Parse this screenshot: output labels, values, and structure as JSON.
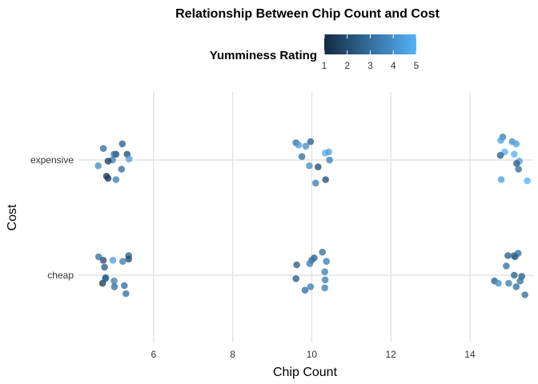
{
  "chart_data": {
    "type": "scatter",
    "title": "Relationship Between Chip Count and Cost",
    "xlabel": "Chip Count",
    "ylabel": "Cost",
    "xlim": [
      4.1,
      15.6
    ],
    "x_ticks": [
      6,
      8,
      10,
      12,
      14
    ],
    "categories": [
      "cheap",
      "expensive"
    ],
    "grid": true,
    "legend": {
      "title": "Yumminess Rating",
      "position": "top",
      "ticks": [
        1,
        2,
        3,
        4,
        5
      ],
      "range": [
        1,
        5
      ],
      "color_low": "#132B43",
      "color_high": "#56B1F7"
    },
    "points": [
      {
        "x": 5.21,
        "cost": "expensive",
        "jitter": 0.14,
        "rating": 2.5
      },
      {
        "x": 4.73,
        "cost": "expensive",
        "jitter": 0.1,
        "rating": 3.0
      },
      {
        "x": 5.05,
        "cost": "expensive",
        "jitter": 0.05,
        "rating": 2.0
      },
      {
        "x": 5.0,
        "cost": "expensive",
        "jitter": 0.05,
        "rating": 3.0
      },
      {
        "x": 5.33,
        "cost": "expensive",
        "jitter": 0.05,
        "rating": 2.0
      },
      {
        "x": 5.38,
        "cost": "expensive",
        "jitter": 0.01,
        "rating": 4.5
      },
      {
        "x": 4.96,
        "cost": "expensive",
        "jitter": 0.0,
        "rating": 3.5
      },
      {
        "x": 4.85,
        "cost": "expensive",
        "jitter": -0.01,
        "rating": 1.5
      },
      {
        "x": 4.6,
        "cost": "expensive",
        "jitter": -0.05,
        "rating": 4.0
      },
      {
        "x": 5.19,
        "cost": "expensive",
        "jitter": -0.08,
        "rating": 3.0
      },
      {
        "x": 4.81,
        "cost": "expensive",
        "jitter": -0.14,
        "rating": 1.5
      },
      {
        "x": 4.85,
        "cost": "expensive",
        "jitter": -0.16,
        "rating": 1.5
      },
      {
        "x": 5.05,
        "cost": "expensive",
        "jitter": -0.17,
        "rating": 3.5
      },
      {
        "x": 9.97,
        "cost": "expensive",
        "jitter": 0.16,
        "rating": 2.5
      },
      {
        "x": 9.6,
        "cost": "expensive",
        "jitter": 0.15,
        "rating": 3.0
      },
      {
        "x": 9.67,
        "cost": "expensive",
        "jitter": 0.13,
        "rating": 4.5
      },
      {
        "x": 9.85,
        "cost": "expensive",
        "jitter": 0.12,
        "rating": 4.0
      },
      {
        "x": 10.34,
        "cost": "expensive",
        "jitter": 0.06,
        "rating": 5.0
      },
      {
        "x": 10.43,
        "cost": "expensive",
        "jitter": 0.07,
        "rating": 4.5
      },
      {
        "x": 9.75,
        "cost": "expensive",
        "jitter": 0.03,
        "rating": 3.0
      },
      {
        "x": 10.45,
        "cost": "expensive",
        "jitter": 0.0,
        "rating": 3.5
      },
      {
        "x": 9.94,
        "cost": "expensive",
        "jitter": -0.05,
        "rating": 4.0
      },
      {
        "x": 10.16,
        "cost": "expensive",
        "jitter": -0.06,
        "rating": 2.0
      },
      {
        "x": 10.35,
        "cost": "expensive",
        "jitter": -0.17,
        "rating": 2.0
      },
      {
        "x": 10.1,
        "cost": "expensive",
        "jitter": -0.2,
        "rating": 3.5
      },
      {
        "x": 14.83,
        "cost": "expensive",
        "jitter": 0.2,
        "rating": 3.5
      },
      {
        "x": 14.78,
        "cost": "expensive",
        "jitter": 0.17,
        "rating": 4.5
      },
      {
        "x": 15.07,
        "cost": "expensive",
        "jitter": 0.16,
        "rating": 4.0
      },
      {
        "x": 15.17,
        "cost": "expensive",
        "jitter": 0.14,
        "rating": 4.5
      },
      {
        "x": 14.88,
        "cost": "expensive",
        "jitter": 0.07,
        "rating": 5.0
      },
      {
        "x": 15.12,
        "cost": "expensive",
        "jitter": 0.05,
        "rating": 5.0
      },
      {
        "x": 14.77,
        "cost": "expensive",
        "jitter": 0.04,
        "rating": 2.5
      },
      {
        "x": 15.25,
        "cost": "expensive",
        "jitter": -0.01,
        "rating": 4.5
      },
      {
        "x": 15.18,
        "cost": "expensive",
        "jitter": -0.03,
        "rating": 2.5
      },
      {
        "x": 15.23,
        "cost": "expensive",
        "jitter": -0.08,
        "rating": 3.0
      },
      {
        "x": 14.79,
        "cost": "expensive",
        "jitter": -0.17,
        "rating": 4.5
      },
      {
        "x": 15.45,
        "cost": "expensive",
        "jitter": -0.18,
        "rating": 5.0
      },
      {
        "x": 5.37,
        "cost": "cheap",
        "jitter": 0.17,
        "rating": 2.5
      },
      {
        "x": 4.61,
        "cost": "cheap",
        "jitter": 0.16,
        "rating": 3.0
      },
      {
        "x": 5.37,
        "cost": "cheap",
        "jitter": 0.14,
        "rating": 2.0
      },
      {
        "x": 4.73,
        "cost": "cheap",
        "jitter": 0.13,
        "rating": 2.0
      },
      {
        "x": 4.97,
        "cost": "cheap",
        "jitter": 0.13,
        "rating": 4.5
      },
      {
        "x": 5.22,
        "cost": "cheap",
        "jitter": 0.12,
        "rating": 3.5
      },
      {
        "x": 4.76,
        "cost": "cheap",
        "jitter": 0.07,
        "rating": 2.5
      },
      {
        "x": 4.71,
        "cost": "cheap",
        "jitter": -0.07,
        "rating": 1.5
      },
      {
        "x": 4.79,
        "cost": "cheap",
        "jitter": -0.02,
        "rating": 3.0
      },
      {
        "x": 5.0,
        "cost": "cheap",
        "jitter": -0.05,
        "rating": 3.5
      },
      {
        "x": 4.78,
        "cost": "cheap",
        "jitter": -0.03,
        "rating": 2.5
      },
      {
        "x": 5.26,
        "cost": "cheap",
        "jitter": -0.09,
        "rating": 3.0
      },
      {
        "x": 5.01,
        "cost": "cheap",
        "jitter": -0.1,
        "rating": 3.0
      },
      {
        "x": 5.3,
        "cost": "cheap",
        "jitter": -0.16,
        "rating": 3.0
      },
      {
        "x": 10.27,
        "cost": "cheap",
        "jitter": 0.2,
        "rating": 3.0
      },
      {
        "x": 10.06,
        "cost": "cheap",
        "jitter": 0.15,
        "rating": 2.5
      },
      {
        "x": 10.0,
        "cost": "cheap",
        "jitter": 0.13,
        "rating": 3.0
      },
      {
        "x": 10.37,
        "cost": "cheap",
        "jitter": 0.12,
        "rating": 3.5
      },
      {
        "x": 9.95,
        "cost": "cheap",
        "jitter": 0.1,
        "rating": 3.5
      },
      {
        "x": 9.62,
        "cost": "cheap",
        "jitter": 0.09,
        "rating": 2.5
      },
      {
        "x": 10.33,
        "cost": "cheap",
        "jitter": 0.03,
        "rating": 3.5
      },
      {
        "x": 9.6,
        "cost": "cheap",
        "jitter": -0.03,
        "rating": 2.5
      },
      {
        "x": 10.34,
        "cost": "cheap",
        "jitter": -0.04,
        "rating": 3.5
      },
      {
        "x": 9.97,
        "cost": "cheap",
        "jitter": -0.1,
        "rating": 3.5
      },
      {
        "x": 10.33,
        "cost": "cheap",
        "jitter": -0.11,
        "rating": 3.5
      },
      {
        "x": 9.83,
        "cost": "cheap",
        "jitter": -0.13,
        "rating": 3.0
      },
      {
        "x": 15.22,
        "cost": "cheap",
        "jitter": 0.19,
        "rating": 3.0
      },
      {
        "x": 14.96,
        "cost": "cheap",
        "jitter": 0.17,
        "rating": 2.5
      },
      {
        "x": 15.11,
        "cost": "cheap",
        "jitter": 0.17,
        "rating": 3.0
      },
      {
        "x": 15.14,
        "cost": "cheap",
        "jitter": 0.16,
        "rating": 2.5
      },
      {
        "x": 14.92,
        "cost": "cheap",
        "jitter": 0.08,
        "rating": 3.0
      },
      {
        "x": 15.12,
        "cost": "cheap",
        "jitter": 0.0,
        "rating": 2.5
      },
      {
        "x": 15.31,
        "cost": "cheap",
        "jitter": -0.01,
        "rating": 2.5
      },
      {
        "x": 14.62,
        "cost": "cheap",
        "jitter": -0.05,
        "rating": 2.5
      },
      {
        "x": 14.72,
        "cost": "cheap",
        "jitter": -0.07,
        "rating": 4.0
      },
      {
        "x": 14.98,
        "cost": "cheap",
        "jitter": -0.07,
        "rating": 3.5
      },
      {
        "x": 15.27,
        "cost": "cheap",
        "jitter": -0.05,
        "rating": 3.0
      },
      {
        "x": 15.17,
        "cost": "cheap",
        "jitter": -0.1,
        "rating": 3.0
      },
      {
        "x": 15.39,
        "cost": "cheap",
        "jitter": -0.17,
        "rating": 3.0
      }
    ]
  }
}
